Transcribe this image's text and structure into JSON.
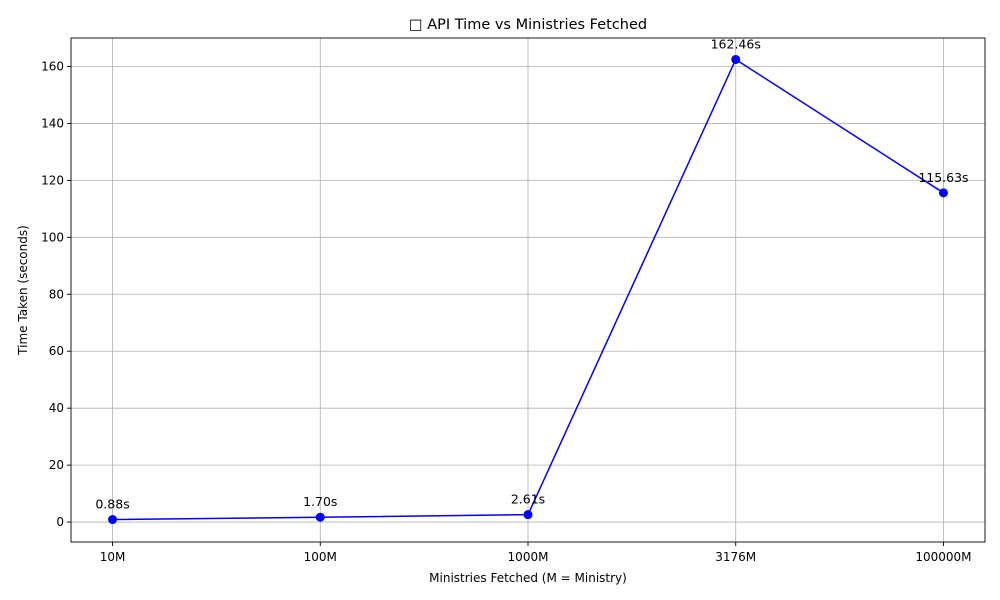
{
  "chart_data": {
    "type": "line",
    "title": "□ API Time vs Ministries Fetched",
    "xlabel": "Ministries Fetched (M = Ministry)",
    "ylabel": "Time Taken (seconds)",
    "categories": [
      "10M",
      "100M",
      "1000M",
      "3176M",
      "100000M"
    ],
    "values": [
      0.88,
      1.7,
      2.61,
      162.46,
      115.63
    ],
    "data_labels": [
      "0.88s",
      "1.70s",
      "2.61s",
      "162.46s",
      "115.63s"
    ],
    "ylim": [
      -7,
      170
    ],
    "yticks": [
      0,
      20,
      40,
      60,
      80,
      100,
      120,
      140,
      160
    ],
    "grid": true,
    "legend": "none",
    "colors": {
      "series": "#0000ff",
      "marker": "#0000ff"
    }
  }
}
